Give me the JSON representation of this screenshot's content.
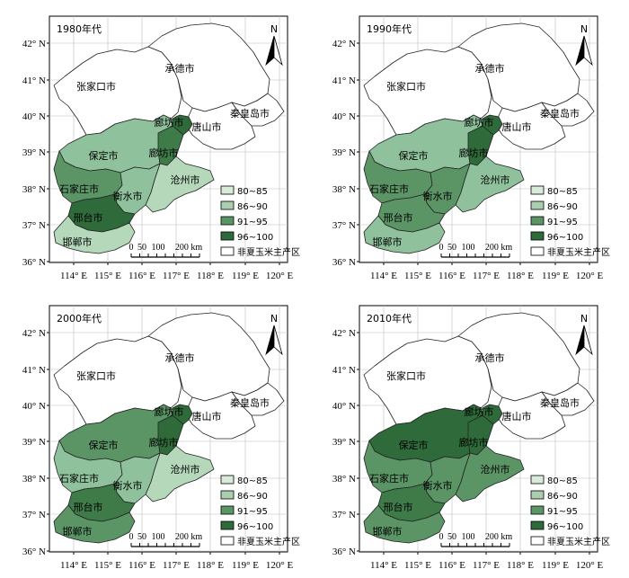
{
  "panels": [
    {
      "era": "1980年代",
      "colors": {
        "bj": "#2f6b3a",
        "zjk": "#ffffff",
        "cd": "#ffffff",
        "ts": "#ffffff",
        "qhd": "#ffffff",
        "bd": "#8fc29c",
        "lf": "#3f7a49",
        "cz": "#b5d8bb",
        "sjz": "#5b9566",
        "hs": "#8fc29c",
        "xt": "#2f6b3a",
        "hd": "#b5d8bb"
      }
    },
    {
      "era": "1990年代",
      "colors": {
        "bj": "#2f6b3a",
        "zjk": "#ffffff",
        "cd": "#ffffff",
        "ts": "#ffffff",
        "qhd": "#ffffff",
        "bd": "#8fc29c",
        "lf": "#2f6b3a",
        "cz": "#8fc29c",
        "sjz": "#5b9566",
        "hs": "#5b9566",
        "xt": "#5b9566",
        "hd": "#8fc29c"
      }
    },
    {
      "era": "2000年代",
      "colors": {
        "bj": "#2f6b3a",
        "zjk": "#ffffff",
        "cd": "#ffffff",
        "ts": "#ffffff",
        "qhd": "#ffffff",
        "bd": "#5b9566",
        "lf": "#2f6b3a",
        "cz": "#b5d8bb",
        "sjz": "#8fc29c",
        "hs": "#8fc29c",
        "xt": "#3f7a49",
        "hd": "#5b9566"
      }
    },
    {
      "era": "2010年代",
      "colors": {
        "bj": "#2f6b3a",
        "zjk": "#ffffff",
        "cd": "#ffffff",
        "ts": "#ffffff",
        "qhd": "#ffffff",
        "bd": "#2f6b3a",
        "lf": "#2f6b3a",
        "cz": "#5b9566",
        "sjz": "#5b9566",
        "hs": "#5b9566",
        "xt": "#3f7a49",
        "hd": "#5b9566"
      }
    }
  ],
  "cities": {
    "zjk": "张家口市",
    "cd": "承德市",
    "bj": "廊坊市",
    "ts": "唐山市",
    "qhd": "秦皇岛市",
    "bd": "保定市",
    "lf": "廊坊市",
    "cz": "沧州市",
    "sjz": "石家庄市",
    "hs": "衡水市",
    "xt": "邢台市",
    "hd": "邯郸市"
  },
  "lat_ticks": [
    "42° N",
    "41° N",
    "40° N",
    "39° N",
    "38° N",
    "37° N",
    "36° N"
  ],
  "lon_ticks": [
    "114° E",
    "115° E",
    "116° E",
    "117° E",
    "118° E",
    "119° E",
    "120° E"
  ],
  "legend": [
    {
      "label": "80~85",
      "color": "#d8ecd9"
    },
    {
      "label": "86~90",
      "color": "#a9cfae"
    },
    {
      "label": "91~95",
      "color": "#5b9566"
    },
    {
      "label": "96~100",
      "color": "#2f6b3a"
    },
    {
      "label": "非夏玉米主产区",
      "color": "#ffffff"
    }
  ],
  "scale_bar": {
    "labels": [
      "0",
      "50",
      "100",
      "200 km"
    ]
  },
  "north_label": "N"
}
